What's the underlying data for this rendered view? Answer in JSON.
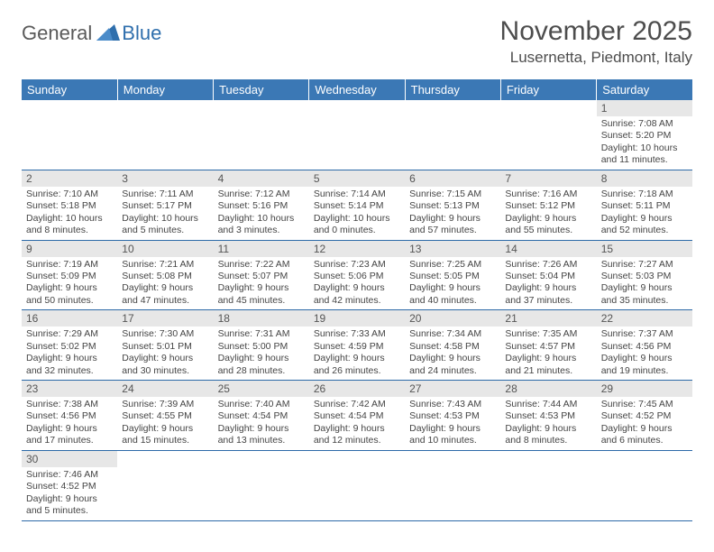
{
  "logo": {
    "general": "General",
    "blue": "Blue",
    "accent_color": "#2f6fad",
    "gray_color": "#5a5a5a"
  },
  "title": "November 2025",
  "location": "Lusernetta, Piedmont, Italy",
  "header_bg": "#3b78b5",
  "header_text": "#ffffff",
  "daynum_bg": "#e7e7e7",
  "border_color": "#2d6aa8",
  "days_of_week": [
    "Sunday",
    "Monday",
    "Tuesday",
    "Wednesday",
    "Thursday",
    "Friday",
    "Saturday"
  ],
  "weeks": [
    [
      null,
      null,
      null,
      null,
      null,
      null,
      {
        "n": "1",
        "sr": "Sunrise: 7:08 AM",
        "ss": "Sunset: 5:20 PM",
        "dl": "Daylight: 10 hours and 11 minutes."
      }
    ],
    [
      {
        "n": "2",
        "sr": "Sunrise: 7:10 AM",
        "ss": "Sunset: 5:18 PM",
        "dl": "Daylight: 10 hours and 8 minutes."
      },
      {
        "n": "3",
        "sr": "Sunrise: 7:11 AM",
        "ss": "Sunset: 5:17 PM",
        "dl": "Daylight: 10 hours and 5 minutes."
      },
      {
        "n": "4",
        "sr": "Sunrise: 7:12 AM",
        "ss": "Sunset: 5:16 PM",
        "dl": "Daylight: 10 hours and 3 minutes."
      },
      {
        "n": "5",
        "sr": "Sunrise: 7:14 AM",
        "ss": "Sunset: 5:14 PM",
        "dl": "Daylight: 10 hours and 0 minutes."
      },
      {
        "n": "6",
        "sr": "Sunrise: 7:15 AM",
        "ss": "Sunset: 5:13 PM",
        "dl": "Daylight: 9 hours and 57 minutes."
      },
      {
        "n": "7",
        "sr": "Sunrise: 7:16 AM",
        "ss": "Sunset: 5:12 PM",
        "dl": "Daylight: 9 hours and 55 minutes."
      },
      {
        "n": "8",
        "sr": "Sunrise: 7:18 AM",
        "ss": "Sunset: 5:11 PM",
        "dl": "Daylight: 9 hours and 52 minutes."
      }
    ],
    [
      {
        "n": "9",
        "sr": "Sunrise: 7:19 AM",
        "ss": "Sunset: 5:09 PM",
        "dl": "Daylight: 9 hours and 50 minutes."
      },
      {
        "n": "10",
        "sr": "Sunrise: 7:21 AM",
        "ss": "Sunset: 5:08 PM",
        "dl": "Daylight: 9 hours and 47 minutes."
      },
      {
        "n": "11",
        "sr": "Sunrise: 7:22 AM",
        "ss": "Sunset: 5:07 PM",
        "dl": "Daylight: 9 hours and 45 minutes."
      },
      {
        "n": "12",
        "sr": "Sunrise: 7:23 AM",
        "ss": "Sunset: 5:06 PM",
        "dl": "Daylight: 9 hours and 42 minutes."
      },
      {
        "n": "13",
        "sr": "Sunrise: 7:25 AM",
        "ss": "Sunset: 5:05 PM",
        "dl": "Daylight: 9 hours and 40 minutes."
      },
      {
        "n": "14",
        "sr": "Sunrise: 7:26 AM",
        "ss": "Sunset: 5:04 PM",
        "dl": "Daylight: 9 hours and 37 minutes."
      },
      {
        "n": "15",
        "sr": "Sunrise: 7:27 AM",
        "ss": "Sunset: 5:03 PM",
        "dl": "Daylight: 9 hours and 35 minutes."
      }
    ],
    [
      {
        "n": "16",
        "sr": "Sunrise: 7:29 AM",
        "ss": "Sunset: 5:02 PM",
        "dl": "Daylight: 9 hours and 32 minutes."
      },
      {
        "n": "17",
        "sr": "Sunrise: 7:30 AM",
        "ss": "Sunset: 5:01 PM",
        "dl": "Daylight: 9 hours and 30 minutes."
      },
      {
        "n": "18",
        "sr": "Sunrise: 7:31 AM",
        "ss": "Sunset: 5:00 PM",
        "dl": "Daylight: 9 hours and 28 minutes."
      },
      {
        "n": "19",
        "sr": "Sunrise: 7:33 AM",
        "ss": "Sunset: 4:59 PM",
        "dl": "Daylight: 9 hours and 26 minutes."
      },
      {
        "n": "20",
        "sr": "Sunrise: 7:34 AM",
        "ss": "Sunset: 4:58 PM",
        "dl": "Daylight: 9 hours and 24 minutes."
      },
      {
        "n": "21",
        "sr": "Sunrise: 7:35 AM",
        "ss": "Sunset: 4:57 PM",
        "dl": "Daylight: 9 hours and 21 minutes."
      },
      {
        "n": "22",
        "sr": "Sunrise: 7:37 AM",
        "ss": "Sunset: 4:56 PM",
        "dl": "Daylight: 9 hours and 19 minutes."
      }
    ],
    [
      {
        "n": "23",
        "sr": "Sunrise: 7:38 AM",
        "ss": "Sunset: 4:56 PM",
        "dl": "Daylight: 9 hours and 17 minutes."
      },
      {
        "n": "24",
        "sr": "Sunrise: 7:39 AM",
        "ss": "Sunset: 4:55 PM",
        "dl": "Daylight: 9 hours and 15 minutes."
      },
      {
        "n": "25",
        "sr": "Sunrise: 7:40 AM",
        "ss": "Sunset: 4:54 PM",
        "dl": "Daylight: 9 hours and 13 minutes."
      },
      {
        "n": "26",
        "sr": "Sunrise: 7:42 AM",
        "ss": "Sunset: 4:54 PM",
        "dl": "Daylight: 9 hours and 12 minutes."
      },
      {
        "n": "27",
        "sr": "Sunrise: 7:43 AM",
        "ss": "Sunset: 4:53 PM",
        "dl": "Daylight: 9 hours and 10 minutes."
      },
      {
        "n": "28",
        "sr": "Sunrise: 7:44 AM",
        "ss": "Sunset: 4:53 PM",
        "dl": "Daylight: 9 hours and 8 minutes."
      },
      {
        "n": "29",
        "sr": "Sunrise: 7:45 AM",
        "ss": "Sunset: 4:52 PM",
        "dl": "Daylight: 9 hours and 6 minutes."
      }
    ],
    [
      {
        "n": "30",
        "sr": "Sunrise: 7:46 AM",
        "ss": "Sunset: 4:52 PM",
        "dl": "Daylight: 9 hours and 5 minutes."
      },
      null,
      null,
      null,
      null,
      null,
      null
    ]
  ]
}
